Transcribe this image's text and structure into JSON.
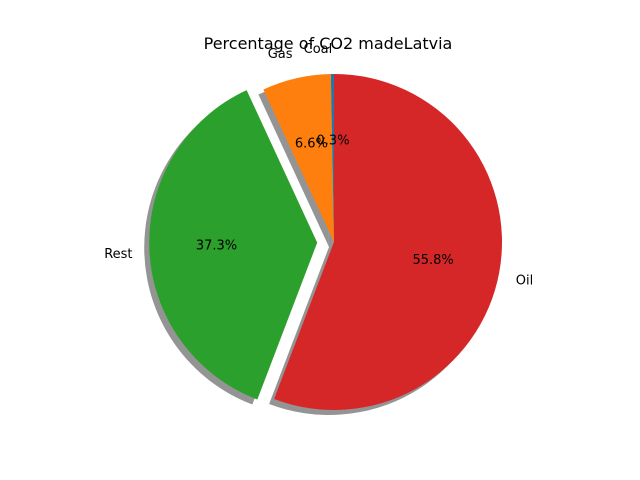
{
  "chart_data": {
    "type": "pie",
    "title": "Percentage of CO2 madeLatvia",
    "categories": [
      "Coal",
      "Gas",
      "Rest",
      "Oil"
    ],
    "values": [
      0.3,
      6.6,
      37.3,
      55.8
    ],
    "value_labels": [
      "0.3%",
      "6.6%",
      "37.3%",
      "55.8%"
    ],
    "colors": [
      "#1f77b4",
      "#ff7f0e",
      "#2ca02c",
      "#d62728"
    ],
    "exploded": [
      "Rest"
    ],
    "shadow": true,
    "start_angle_deg": 90,
    "direction": "counterclockwise",
    "legend": false
  }
}
